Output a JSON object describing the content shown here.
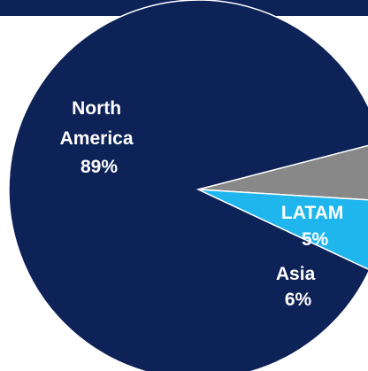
{
  "chart_data": {
    "type": "pie",
    "slices": [
      {
        "label_lines": [
          "North",
          "America"
        ],
        "value_text": "89%",
        "value": 89,
        "color": "#0d2257"
      },
      {
        "label_lines": [
          "Asia"
        ],
        "value_text": "6%",
        "value": 6,
        "color": "#1fb6ee"
      },
      {
        "label_lines": [
          "LATAM"
        ],
        "value_text": "5%",
        "value": 5,
        "color": "#888888"
      }
    ],
    "title": "",
    "legend": "none"
  },
  "colors": {
    "top_bar": "#0d2257",
    "slice_border": "#ffffff",
    "label_text": "#ffffff"
  }
}
